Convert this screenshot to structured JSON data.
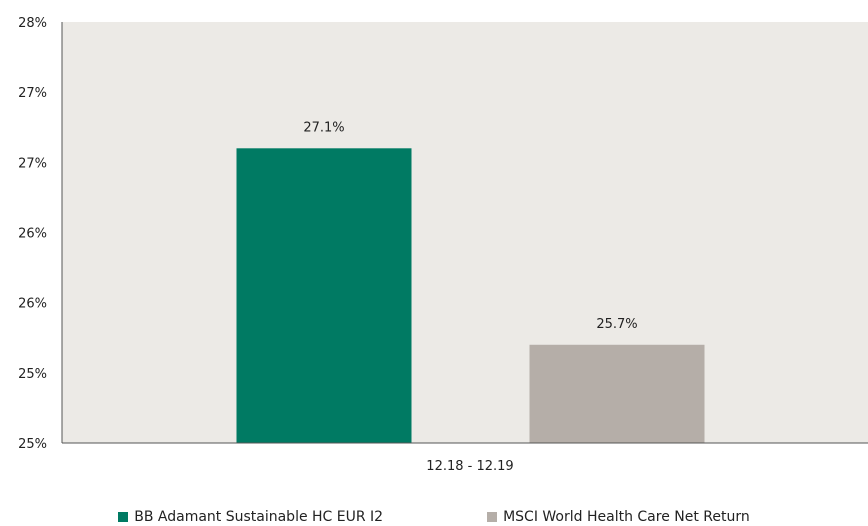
{
  "chart_data": {
    "type": "bar",
    "categories": [
      "12.18 - 12.19"
    ],
    "series": [
      {
        "name": "BB Adamant Sustainable HC EUR I2",
        "values": [
          27.1
        ],
        "label": "27.1%",
        "color": "#007A63"
      },
      {
        "name": "MSCI World Health Care Net Return",
        "values": [
          25.7
        ],
        "label": "25.7%",
        "color": "#B5AEA8"
      }
    ],
    "yticks": [
      "28%",
      "27%",
      "27%",
      "26%",
      "26%",
      "25%",
      "25%"
    ],
    "ylim": [
      25.0,
      28.0
    ],
    "grid": false,
    "legend_position": "bottom",
    "plot_background": "#ECEAE6"
  }
}
